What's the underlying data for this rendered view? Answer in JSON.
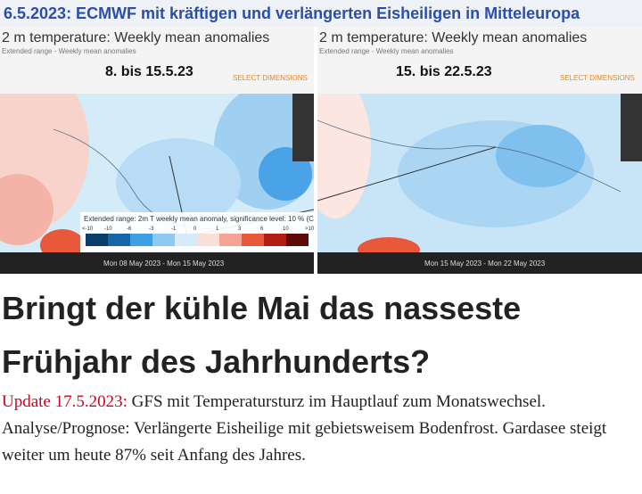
{
  "header": {
    "title": "6.5.2023: ECMWF mit kräftigen und verlängerten Eisheiligen in Mitteleuropa"
  },
  "panels": [
    {
      "title": "2 m temperature: Weekly mean anomalies",
      "subtitle": "Extended range - Weekly mean anomalies",
      "date": "8. bis 15.5.23",
      "select": "SELECT DIMENSIONS",
      "period": "Mon 08 May 2023 - Mon 15 May 2023"
    },
    {
      "title": "2 m temperature: Weekly mean anomalies",
      "subtitle": "Extended range - Weekly mean anomalies",
      "date": "15. bis 22.5.23",
      "select": "SELECT DIMENSIONS",
      "period": "Mon 15 May 2023 - Mon 22 May 2023"
    }
  ],
  "legend": {
    "title": "Extended range: 2m T weekly mean anomaly, significance level: 10 % (C",
    "ticks": [
      "<-10",
      "-10",
      "-6",
      "-3",
      "-1",
      "0",
      "1",
      "3",
      "6",
      "10",
      ">10"
    ]
  },
  "article": {
    "heading_lines": [
      "Bringt der kühle Mai das nasseste",
      "Frühjahr des Jahrhunderts?"
    ],
    "update": "Update 17.5.2023:",
    "text": "GFS mit Temperatursturz im Hauptlauf zum Monatswechsel. Analyse/Prognose: Verlängerte Eisheilige mit gebietsweisem Bodenfrost. Gardasee steigt weiter um heute 87% seit Anfang des Jahres."
  }
}
